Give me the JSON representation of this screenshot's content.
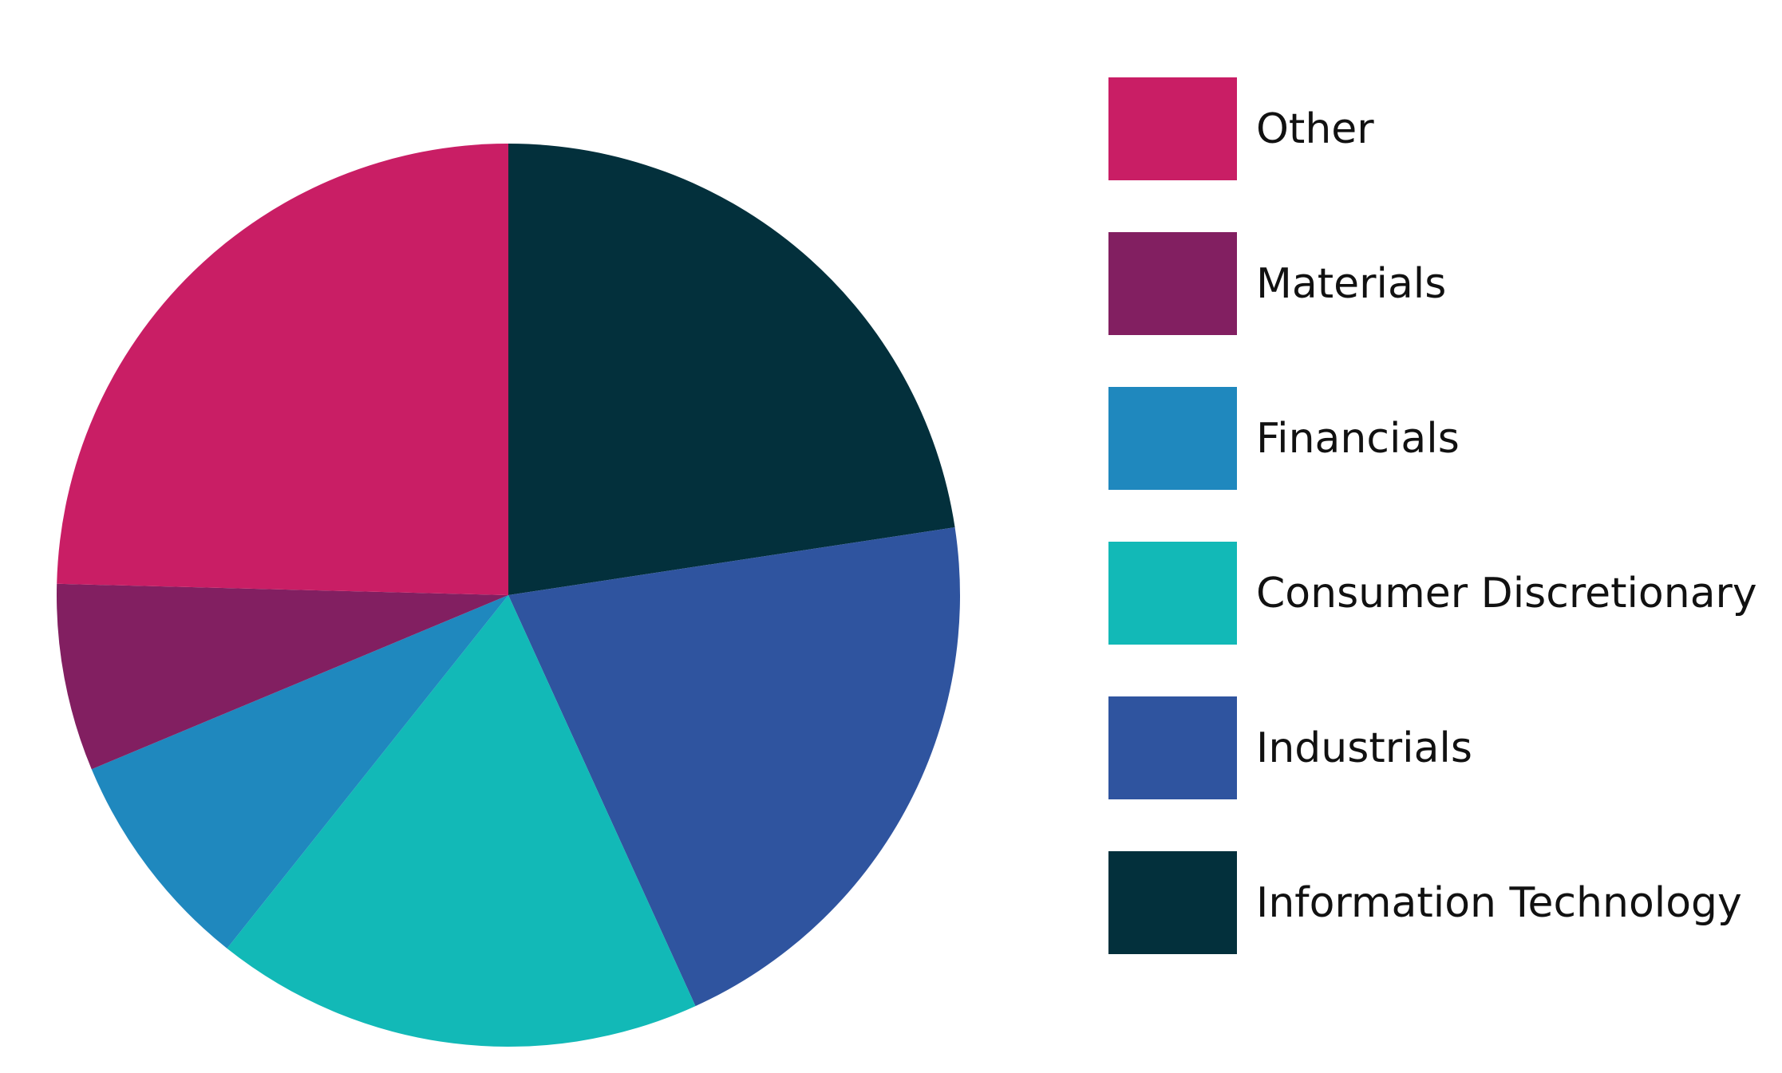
{
  "chart_data": {
    "type": "pie",
    "title": "",
    "legend_position": "right",
    "slices": [
      {
        "label": "Information Technology",
        "value": 22.6,
        "color": "#03303c"
      },
      {
        "label": "Industrials",
        "value": 20.6,
        "color": "#2f549f"
      },
      {
        "label": "Consumer Discretionary",
        "value": 17.5,
        "color": "#12b9b7"
      },
      {
        "label": "Financials",
        "value": 8.0,
        "color": "#1f88be"
      },
      {
        "label": "Materials",
        "value": 6.7,
        "color": "#821f61"
      },
      {
        "label": "Other",
        "value": 24.6,
        "color": "#c91e65"
      }
    ],
    "legend_order": [
      "Other",
      "Materials",
      "Financials",
      "Consumer Discretionary",
      "Industrials",
      "Information Technology"
    ]
  }
}
